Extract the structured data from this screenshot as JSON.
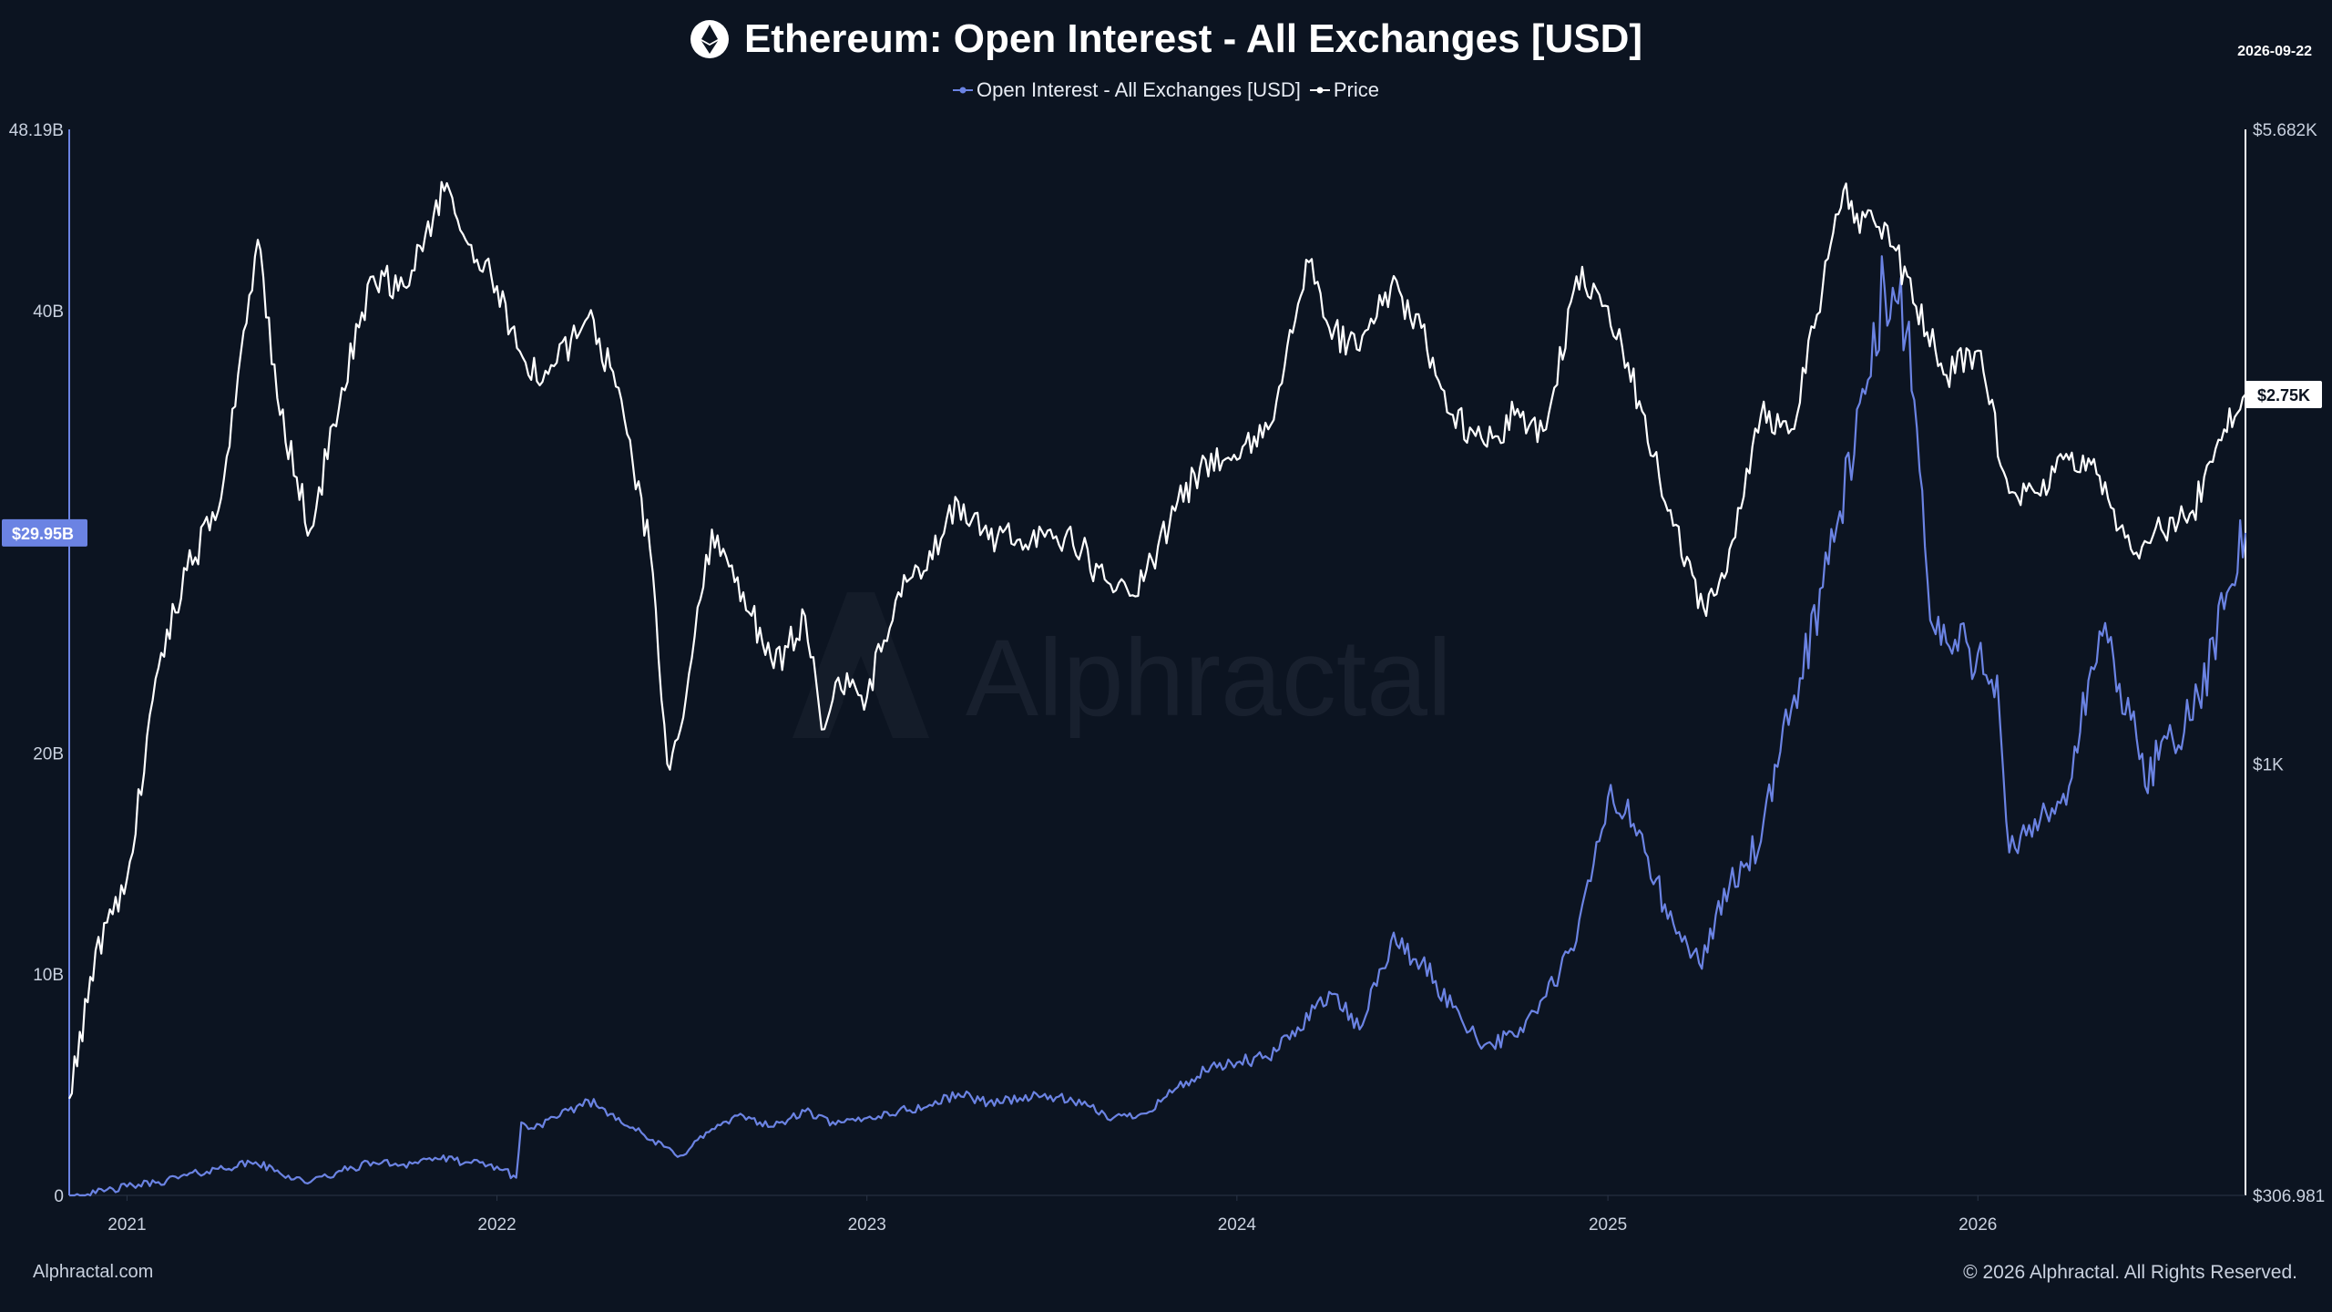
{
  "title": "Ethereum: Open Interest - All Exchanges [USD]",
  "date_stamp": "2026-09-22",
  "legend": {
    "oi_label": "Open Interest - All Exchanges [USD]",
    "price_label": "Price"
  },
  "watermark": "Alphractal",
  "footer": {
    "left": "Alphractal.com",
    "right": "© 2026 Alphractal. All Rights Reserved."
  },
  "colors": {
    "background": "#0c1421",
    "oi": "#6b83e3",
    "price": "#ffffff",
    "axis_text": "#c9d1df"
  },
  "chart_data": {
    "type": "line",
    "title": "Ethereum: Open Interest - All Exchanges [USD]",
    "x_ticks": [
      "2021",
      "2022",
      "2023",
      "2024",
      "2025",
      "2026"
    ],
    "x_range": [
      "2020-11-05",
      "2026-09-22"
    ],
    "left_axis": {
      "series": "Open Interest - All Exchanges [USD]",
      "ticks": [
        "0",
        "10B",
        "20B",
        "40B",
        "48.19B"
      ],
      "range": [
        0,
        48.19
      ],
      "last_value_label": "$29.95B"
    },
    "right_axis": {
      "series": "Price",
      "scale": "log",
      "ticks": [
        "$306.981",
        "$1K",
        "$5.682K"
      ],
      "range": [
        306.981,
        5682
      ],
      "last_value_label": "$2.75K"
    },
    "series": [
      {
        "name": "Open Interest - All Exchanges [USD]",
        "axis": "left",
        "unit": "B USD",
        "points": [
          [
            "2020-11-05",
            0.0
          ],
          [
            "2020-12-01",
            0.1
          ],
          [
            "2021-01-01",
            0.4
          ],
          [
            "2021-02-01",
            0.6
          ],
          [
            "2021-03-01",
            0.9
          ],
          [
            "2021-04-01",
            1.2
          ],
          [
            "2021-05-08",
            1.5
          ],
          [
            "2021-06-01",
            1.0
          ],
          [
            "2021-07-01",
            0.6
          ],
          [
            "2021-08-01",
            1.1
          ],
          [
            "2021-09-01",
            1.5
          ],
          [
            "2021-10-01",
            1.4
          ],
          [
            "2021-11-01",
            1.7
          ],
          [
            "2021-12-01",
            1.5
          ],
          [
            "2022-01-01",
            1.3
          ],
          [
            "2022-01-20",
            0.8
          ],
          [
            "2022-01-25",
            3.3
          ],
          [
            "2022-02-01",
            3.0
          ],
          [
            "2022-03-01",
            3.5
          ],
          [
            "2022-04-01",
            4.3
          ],
          [
            "2022-05-01",
            3.5
          ],
          [
            "2022-06-01",
            2.5
          ],
          [
            "2022-07-01",
            1.8
          ],
          [
            "2022-08-01",
            3.0
          ],
          [
            "2022-09-01",
            3.6
          ],
          [
            "2022-10-01",
            3.1
          ],
          [
            "2022-11-01",
            3.8
          ],
          [
            "2022-12-01",
            3.2
          ],
          [
            "2023-01-01",
            3.5
          ],
          [
            "2023-02-01",
            3.8
          ],
          [
            "2023-03-01",
            4.0
          ],
          [
            "2023-04-01",
            4.6
          ],
          [
            "2023-05-01",
            4.2
          ],
          [
            "2023-06-01",
            4.4
          ],
          [
            "2023-07-01",
            4.5
          ],
          [
            "2023-08-01",
            4.1
          ],
          [
            "2023-09-01",
            3.5
          ],
          [
            "2023-10-01",
            3.7
          ],
          [
            "2023-11-01",
            4.8
          ],
          [
            "2023-12-01",
            5.6
          ],
          [
            "2024-01-01",
            6.0
          ],
          [
            "2024-02-01",
            6.2
          ],
          [
            "2024-03-01",
            7.6
          ],
          [
            "2024-04-01",
            9.2
          ],
          [
            "2024-05-01",
            7.5
          ],
          [
            "2024-06-01",
            11.5
          ],
          [
            "2024-07-01",
            10.5
          ],
          [
            "2024-08-01",
            8.5
          ],
          [
            "2024-09-01",
            6.8
          ],
          [
            "2024-10-01",
            7.2
          ],
          [
            "2024-11-01",
            9.0
          ],
          [
            "2024-12-01",
            11.5
          ],
          [
            "2025-01-01",
            18.0
          ],
          [
            "2025-02-01",
            16.5
          ],
          [
            "2025-03-01",
            12.5
          ],
          [
            "2025-04-01",
            10.5
          ],
          [
            "2025-05-01",
            14.0
          ],
          [
            "2025-06-01",
            16.0
          ],
          [
            "2025-07-01",
            22.0
          ],
          [
            "2025-08-01",
            27.5
          ],
          [
            "2025-09-01",
            33.5
          ],
          [
            "2025-10-01",
            41.0
          ],
          [
            "2025-10-25",
            39.5
          ],
          [
            "2025-11-15",
            26.0
          ],
          [
            "2025-12-01",
            25.0
          ],
          [
            "2026-01-01",
            24.5
          ],
          [
            "2026-01-20",
            23.5
          ],
          [
            "2026-02-01",
            15.5
          ],
          [
            "2026-03-01",
            16.5
          ],
          [
            "2026-04-01",
            18.5
          ],
          [
            "2026-05-01",
            25.5
          ],
          [
            "2026-06-01",
            21.5
          ],
          [
            "2026-06-15",
            18.5
          ],
          [
            "2026-07-01",
            20.5
          ],
          [
            "2026-08-01",
            21.5
          ],
          [
            "2026-09-01",
            26.5
          ],
          [
            "2026-09-22",
            29.95
          ]
        ]
      },
      {
        "name": "Price",
        "axis": "right",
        "unit": "USD",
        "points": [
          [
            "2020-11-05",
            400
          ],
          [
            "2020-12-01",
            600
          ],
          [
            "2021-01-01",
            730
          ],
          [
            "2021-02-01",
            1300
          ],
          [
            "2021-03-01",
            1700
          ],
          [
            "2021-04-01",
            2000
          ],
          [
            "2021-05-10",
            4200
          ],
          [
            "2021-06-01",
            2600
          ],
          [
            "2021-07-01",
            1900
          ],
          [
            "2021-08-01",
            2800
          ],
          [
            "2021-09-01",
            3800
          ],
          [
            "2021-10-01",
            3700
          ],
          [
            "2021-11-10",
            4800
          ],
          [
            "2021-12-01",
            4200
          ],
          [
            "2022-01-01",
            3700
          ],
          [
            "2022-02-01",
            2900
          ],
          [
            "2022-03-01",
            3000
          ],
          [
            "2022-04-01",
            3400
          ],
          [
            "2022-05-01",
            2800
          ],
          [
            "2022-06-01",
            1800
          ],
          [
            "2022-06-18",
            1000
          ],
          [
            "2022-07-01",
            1100
          ],
          [
            "2022-08-01",
            1900
          ],
          [
            "2022-09-01",
            1600
          ],
          [
            "2022-10-01",
            1300
          ],
          [
            "2022-11-01",
            1500
          ],
          [
            "2022-11-20",
            1100
          ],
          [
            "2022-12-01",
            1250
          ],
          [
            "2023-01-01",
            1200
          ],
          [
            "2023-02-01",
            1600
          ],
          [
            "2023-03-01",
            1700
          ],
          [
            "2023-04-01",
            2050
          ],
          [
            "2023-05-01",
            1850
          ],
          [
            "2023-06-01",
            1850
          ],
          [
            "2023-07-01",
            1900
          ],
          [
            "2023-08-01",
            1800
          ],
          [
            "2023-09-01",
            1600
          ],
          [
            "2023-10-01",
            1650
          ],
          [
            "2023-11-01",
            2000
          ],
          [
            "2023-12-01",
            2300
          ],
          [
            "2024-01-01",
            2300
          ],
          [
            "2024-02-01",
            2500
          ],
          [
            "2024-03-12",
            3950
          ],
          [
            "2024-04-01",
            3300
          ],
          [
            "2024-05-01",
            3100
          ],
          [
            "2024-06-01",
            3700
          ],
          [
            "2024-07-01",
            3300
          ],
          [
            "2024-08-01",
            2600
          ],
          [
            "2024-09-01",
            2400
          ],
          [
            "2024-10-01",
            2600
          ],
          [
            "2024-11-01",
            2500
          ],
          [
            "2024-12-01",
            3800
          ],
          [
            "2025-01-01",
            3500
          ],
          [
            "2025-02-01",
            2700
          ],
          [
            "2025-03-01",
            2000
          ],
          [
            "2025-04-08",
            1500
          ],
          [
            "2025-05-01",
            1800
          ],
          [
            "2025-06-01",
            2600
          ],
          [
            "2025-07-01",
            2500
          ],
          [
            "2025-08-01",
            3700
          ],
          [
            "2025-08-24",
            4900
          ],
          [
            "2025-09-01",
            4400
          ],
          [
            "2025-10-01",
            4400
          ],
          [
            "2025-11-01",
            3500
          ],
          [
            "2025-12-01",
            2900
          ],
          [
            "2026-01-01",
            3100
          ],
          [
            "2026-02-01",
            2100
          ],
          [
            "2026-03-01",
            2100
          ],
          [
            "2026-04-01",
            2300
          ],
          [
            "2026-05-01",
            2200
          ],
          [
            "2026-06-01",
            1800
          ],
          [
            "2026-07-01",
            1900
          ],
          [
            "2026-08-01",
            2000
          ],
          [
            "2026-09-01",
            2500
          ],
          [
            "2026-09-22",
            2750
          ]
        ]
      }
    ],
    "grid": false,
    "legend_position": "top-center"
  }
}
